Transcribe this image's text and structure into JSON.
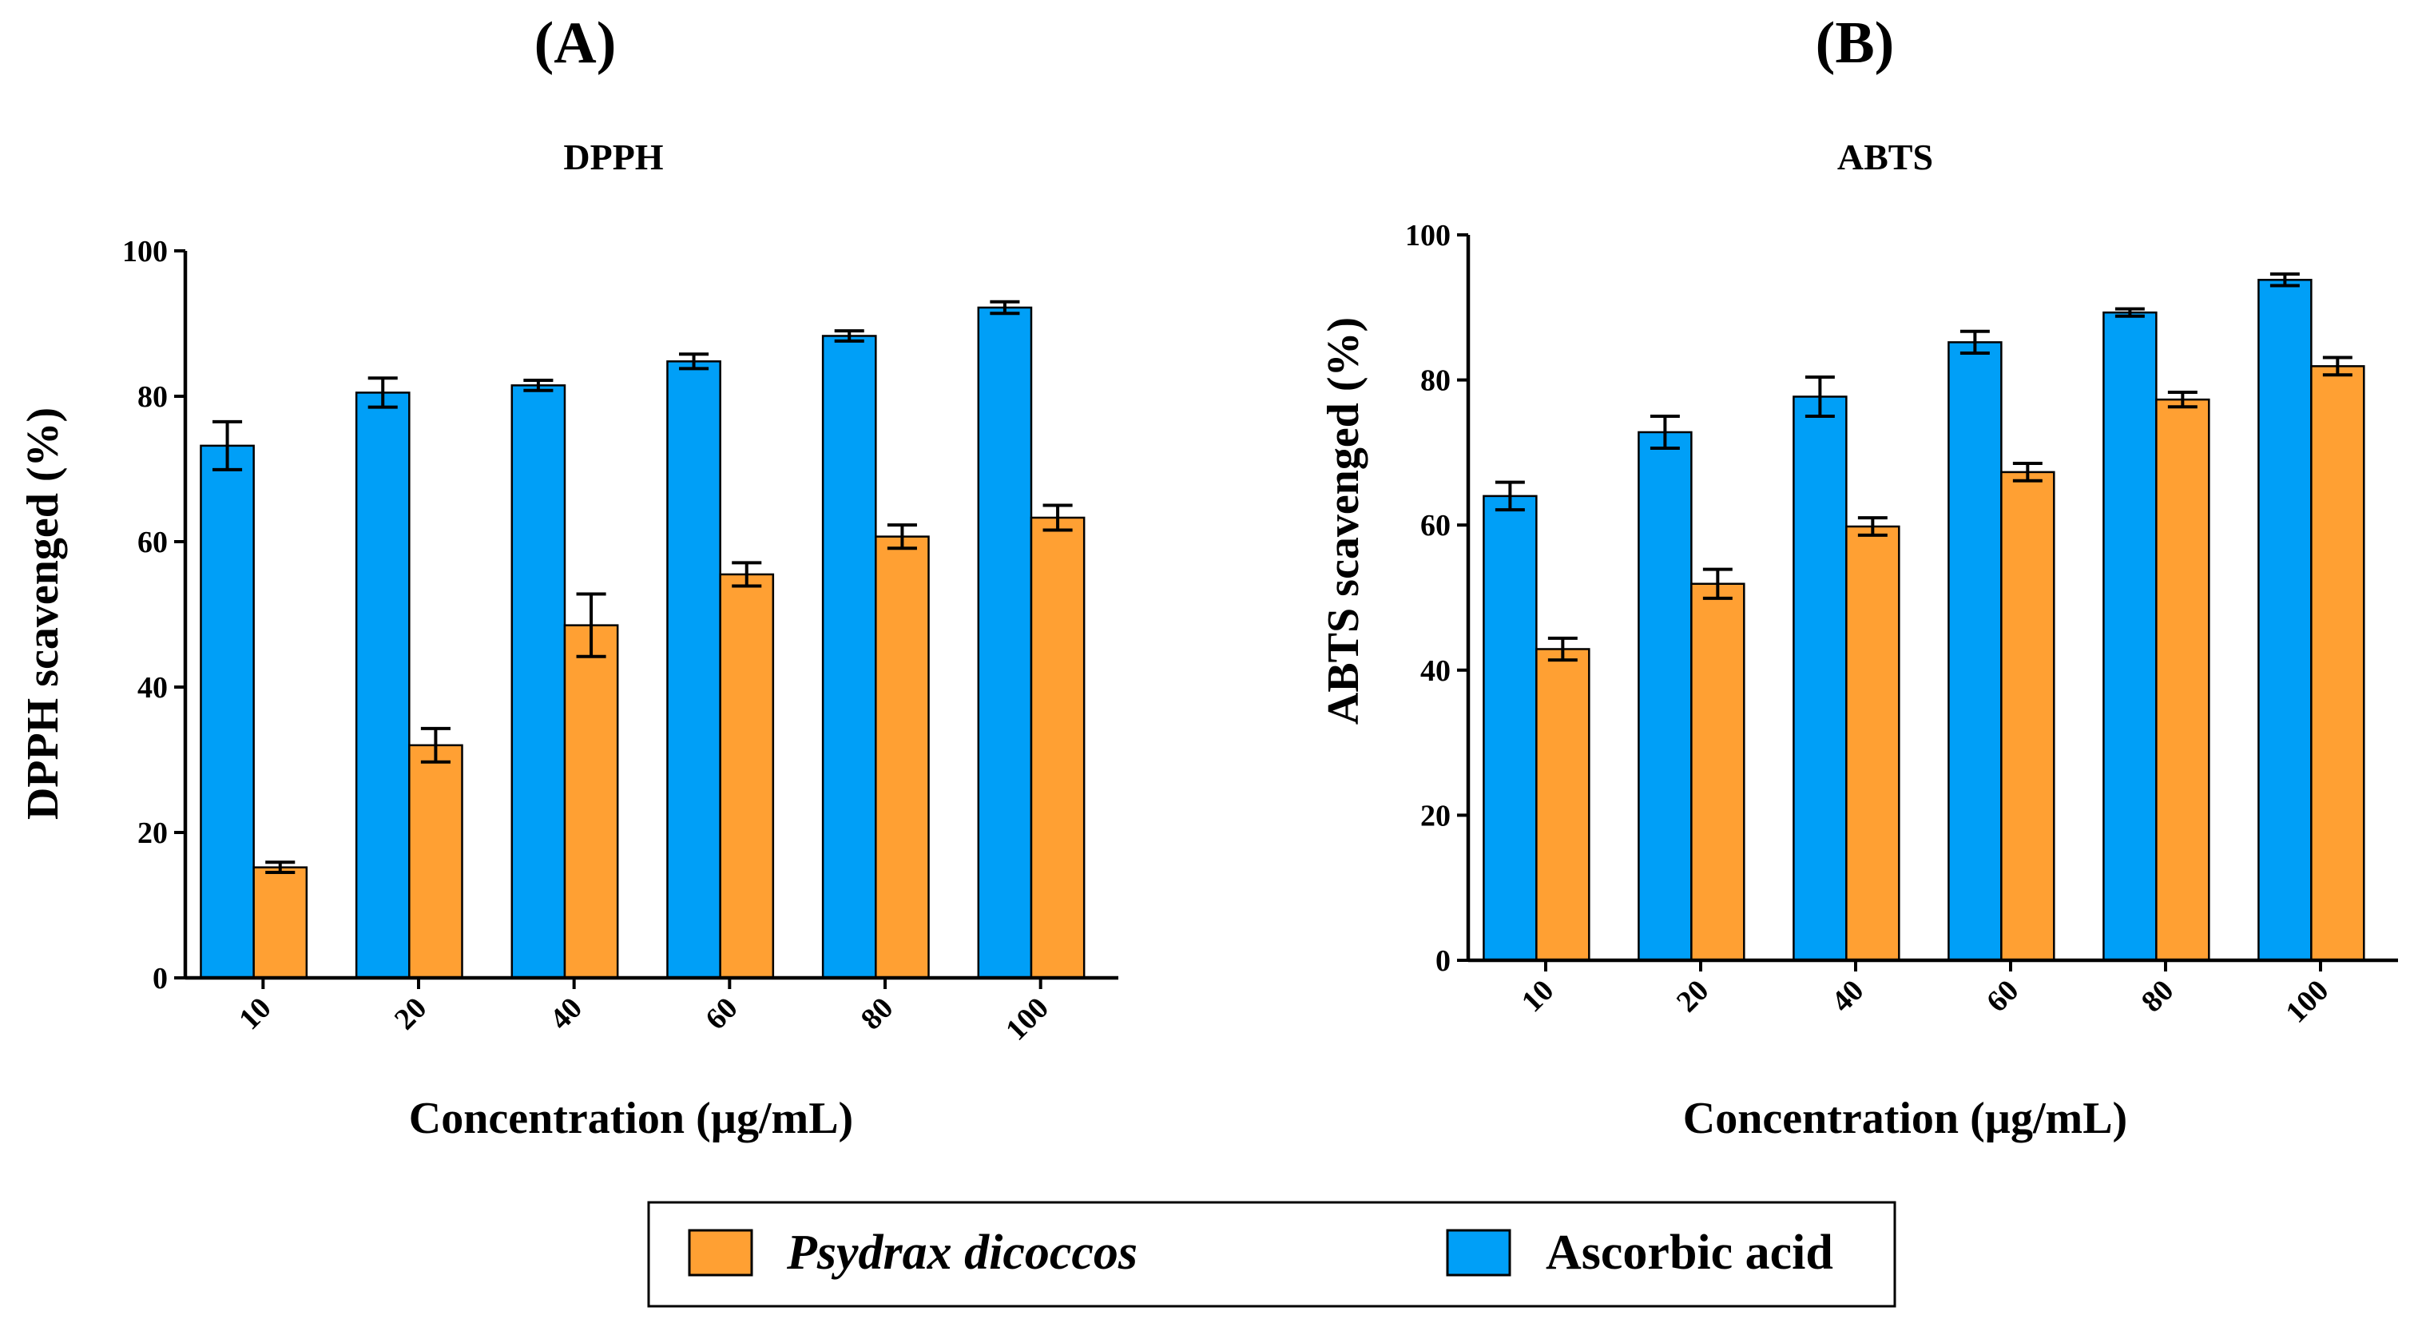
{
  "panels": [
    {
      "label": "(A)"
    },
    {
      "label": "(B)"
    }
  ],
  "legend": {
    "items": [
      {
        "label": "Psydrax dicoccos",
        "color": "#FFA033",
        "italic": true
      },
      {
        "label": "Ascorbic acid",
        "color": "#009FF7",
        "italic": false
      }
    ]
  },
  "chart_data": [
    {
      "type": "bar",
      "title": "DPPH",
      "xlabel": "Concentration (µg/mL)",
      "ylabel": "DPPH scavenged (%)",
      "categories": [
        "10",
        "20",
        "40",
        "60",
        "80",
        "100"
      ],
      "ylim": [
        0,
        100
      ],
      "yticks": [
        "0",
        "20",
        "40",
        "60",
        "80",
        "100"
      ],
      "grid": false,
      "series": [
        {
          "name": "Ascorbic acid",
          "color": "#009FF7",
          "values": [
            73.2,
            80.5,
            81.5,
            84.8,
            88.3,
            92.2
          ],
          "errors": [
            3.3,
            2.0,
            0.7,
            1.0,
            0.7,
            0.8
          ]
        },
        {
          "name": "Psydrax dicoccos",
          "color": "#FFA033",
          "values": [
            15.2,
            32.0,
            48.5,
            55.5,
            60.7,
            63.3
          ],
          "errors": [
            0.7,
            2.3,
            4.3,
            1.6,
            1.6,
            1.7
          ]
        }
      ]
    },
    {
      "type": "bar",
      "title": "ABTS",
      "xlabel": "Concentration (µg/mL)",
      "ylabel": "ABTS scavenged (%)",
      "categories": [
        "10",
        "20",
        "40",
        "60",
        "80",
        "100"
      ],
      "ylim": [
        0,
        100
      ],
      "yticks": [
        "0",
        "20",
        "40",
        "60",
        "80",
        "100"
      ],
      "grid": false,
      "series": [
        {
          "name": "Ascorbic acid",
          "color": "#009FF7",
          "values": [
            64.0,
            72.8,
            77.7,
            85.2,
            89.3,
            93.8
          ],
          "errors": [
            1.9,
            2.2,
            2.7,
            1.5,
            0.5,
            0.8
          ]
        },
        {
          "name": "Psydrax dicoccos",
          "color": "#FFA033",
          "values": [
            42.9,
            51.9,
            59.8,
            67.3,
            77.3,
            81.9
          ],
          "errors": [
            1.5,
            2.0,
            1.2,
            1.2,
            1.0,
            1.2
          ]
        }
      ]
    }
  ]
}
